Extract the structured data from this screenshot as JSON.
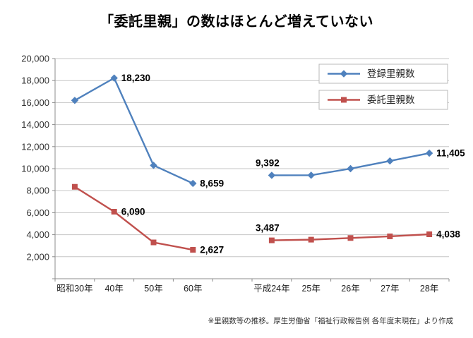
{
  "page": {
    "title": "「委託里親」の数はほとんど増えていない",
    "source_note": "※里親数等の推移。厚生労働省「福祉行政報告例 各年度末現在」より作成"
  },
  "chart_data": {
    "type": "line",
    "title": "「委託里親」の数はほとんど増えていない",
    "categories": [
      "昭和30年",
      "40年",
      "50年",
      "60年",
      "",
      "平成24年",
      "25年",
      "26年",
      "27年",
      "28年"
    ],
    "series": [
      {
        "name": "登録里親数",
        "color": "#4f81bd",
        "marker": "diamond",
        "values": [
          16200,
          18230,
          10300,
          8659,
          null,
          9392,
          9400,
          10000,
          10700,
          11405
        ]
      },
      {
        "name": "委託里親数",
        "color": "#c0504d",
        "marker": "square",
        "values": [
          8350,
          6090,
          3300,
          2627,
          null,
          3487,
          3550,
          3700,
          3850,
          4038
        ]
      }
    ],
    "point_labels": [
      {
        "series": 0,
        "index": 1,
        "text": "18,230",
        "position": "right"
      },
      {
        "series": 0,
        "index": 3,
        "text": "8,659",
        "position": "right"
      },
      {
        "series": 0,
        "index": 5,
        "text": "9,392",
        "position": "above"
      },
      {
        "series": 0,
        "index": 9,
        "text": "11,405",
        "position": "right"
      },
      {
        "series": 1,
        "index": 1,
        "text": "6,090",
        "position": "right"
      },
      {
        "series": 1,
        "index": 3,
        "text": "2,627",
        "position": "right"
      },
      {
        "series": 1,
        "index": 5,
        "text": "3,487",
        "position": "above"
      },
      {
        "series": 1,
        "index": 9,
        "text": "4,038",
        "position": "right"
      }
    ],
    "ylim": [
      0,
      20000
    ],
    "ytick_step": 2000,
    "ytick_labels": [
      "2,000",
      "4,000",
      "6,000",
      "8,000",
      "10,000",
      "12,000",
      "14,000",
      "16,000",
      "18,000",
      "20,000"
    ],
    "grid": true,
    "legend_position": "top-right"
  }
}
